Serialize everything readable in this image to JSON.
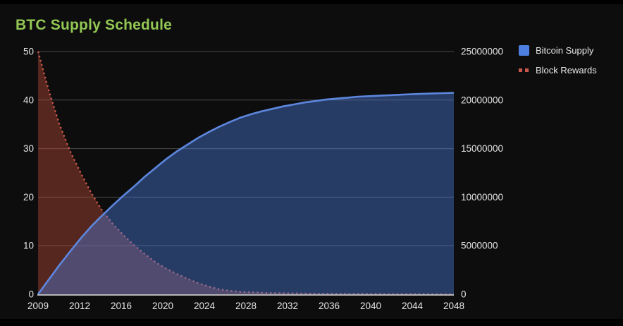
{
  "title": "BTC Supply Schedule",
  "colors": {
    "background": "#0d0d0d",
    "frame": "#000000",
    "title": "#93c854",
    "supply_line": "#5d87de",
    "supply_fill": "rgba(77,127,224,0.42)",
    "supply_marker": "#4d7fe0",
    "rewards_line": "#c8584a",
    "rewards_fill": "rgba(198,80,60,0.40)",
    "rewards_marker": "#c8584a",
    "grid": "rgba(255,255,255,0.25)",
    "axis_line": "#b5b5b5",
    "tick_text": "#e5e5e5"
  },
  "legend": {
    "items": [
      {
        "label": "Bitcoin Supply",
        "marker": "square"
      },
      {
        "label": "Block Rewards",
        "marker": "dotted"
      }
    ]
  },
  "chart_data": {
    "type": "area",
    "title": "BTC Supply Schedule",
    "grid": "horizontal",
    "legend_position": "top-right",
    "x": [
      2009,
      2010,
      2011,
      2012,
      2013,
      2014,
      2015,
      2016,
      2017,
      2018,
      2019,
      2020,
      2021,
      2022,
      2023,
      2024,
      2025,
      2026,
      2027,
      2028,
      2029,
      2030,
      2031,
      2032,
      2033,
      2034,
      2035,
      2036,
      2037,
      2038,
      2039,
      2040,
      2041,
      2042,
      2043,
      2044,
      2045,
      2046,
      2047,
      2048
    ],
    "series": [
      {
        "name": "Bitcoin Supply",
        "axis": "right",
        "style": "solid",
        "values": [
          0,
          1500000,
          3000000,
          4400000,
          5750000,
          7000000,
          8100000,
          9150000,
          10150000,
          11100000,
          12100000,
          13000000,
          13900000,
          14700000,
          15400000,
          16100000,
          16700000,
          17250000,
          17750000,
          18200000,
          18550000,
          18850000,
          19100000,
          19350000,
          19550000,
          19750000,
          19900000,
          20050000,
          20150000,
          20250000,
          20350000,
          20400000,
          20450000,
          20500000,
          20550000,
          20600000,
          20650000,
          20680000,
          20710000,
          20750000
        ]
      },
      {
        "name": "Block Rewards",
        "axis": "left",
        "style": "dotted",
        "values": [
          50,
          42,
          35,
          29.5,
          25,
          20.8,
          17.3,
          14.5,
          12.2,
          10.1,
          8.3,
          6.6,
          5.3,
          4.2,
          3.2,
          2.3,
          1.6,
          1.0,
          0.7,
          0.5,
          0.4,
          0.3,
          0.25,
          0.2,
          0.18,
          0.15,
          0.13,
          0.11,
          0.1,
          0.09,
          0.08,
          0.07,
          0.06,
          0.05,
          0.05,
          0.04,
          0.04,
          0.03,
          0.03,
          0.03
        ]
      }
    ],
    "left_axis": {
      "ticks": [
        0,
        10,
        20,
        30,
        40,
        50
      ],
      "range": [
        0,
        50
      ]
    },
    "right_axis": {
      "ticks": [
        0,
        5000000,
        10000000,
        15000000,
        20000000,
        25000000
      ],
      "range": [
        0,
        25000000
      ]
    },
    "x_axis": {
      "tick_labels": [
        2009,
        2012,
        2016,
        2020,
        2024,
        2028,
        2032,
        2036,
        2040,
        2044,
        2048
      ],
      "range": [
        2009,
        2048
      ]
    }
  }
}
